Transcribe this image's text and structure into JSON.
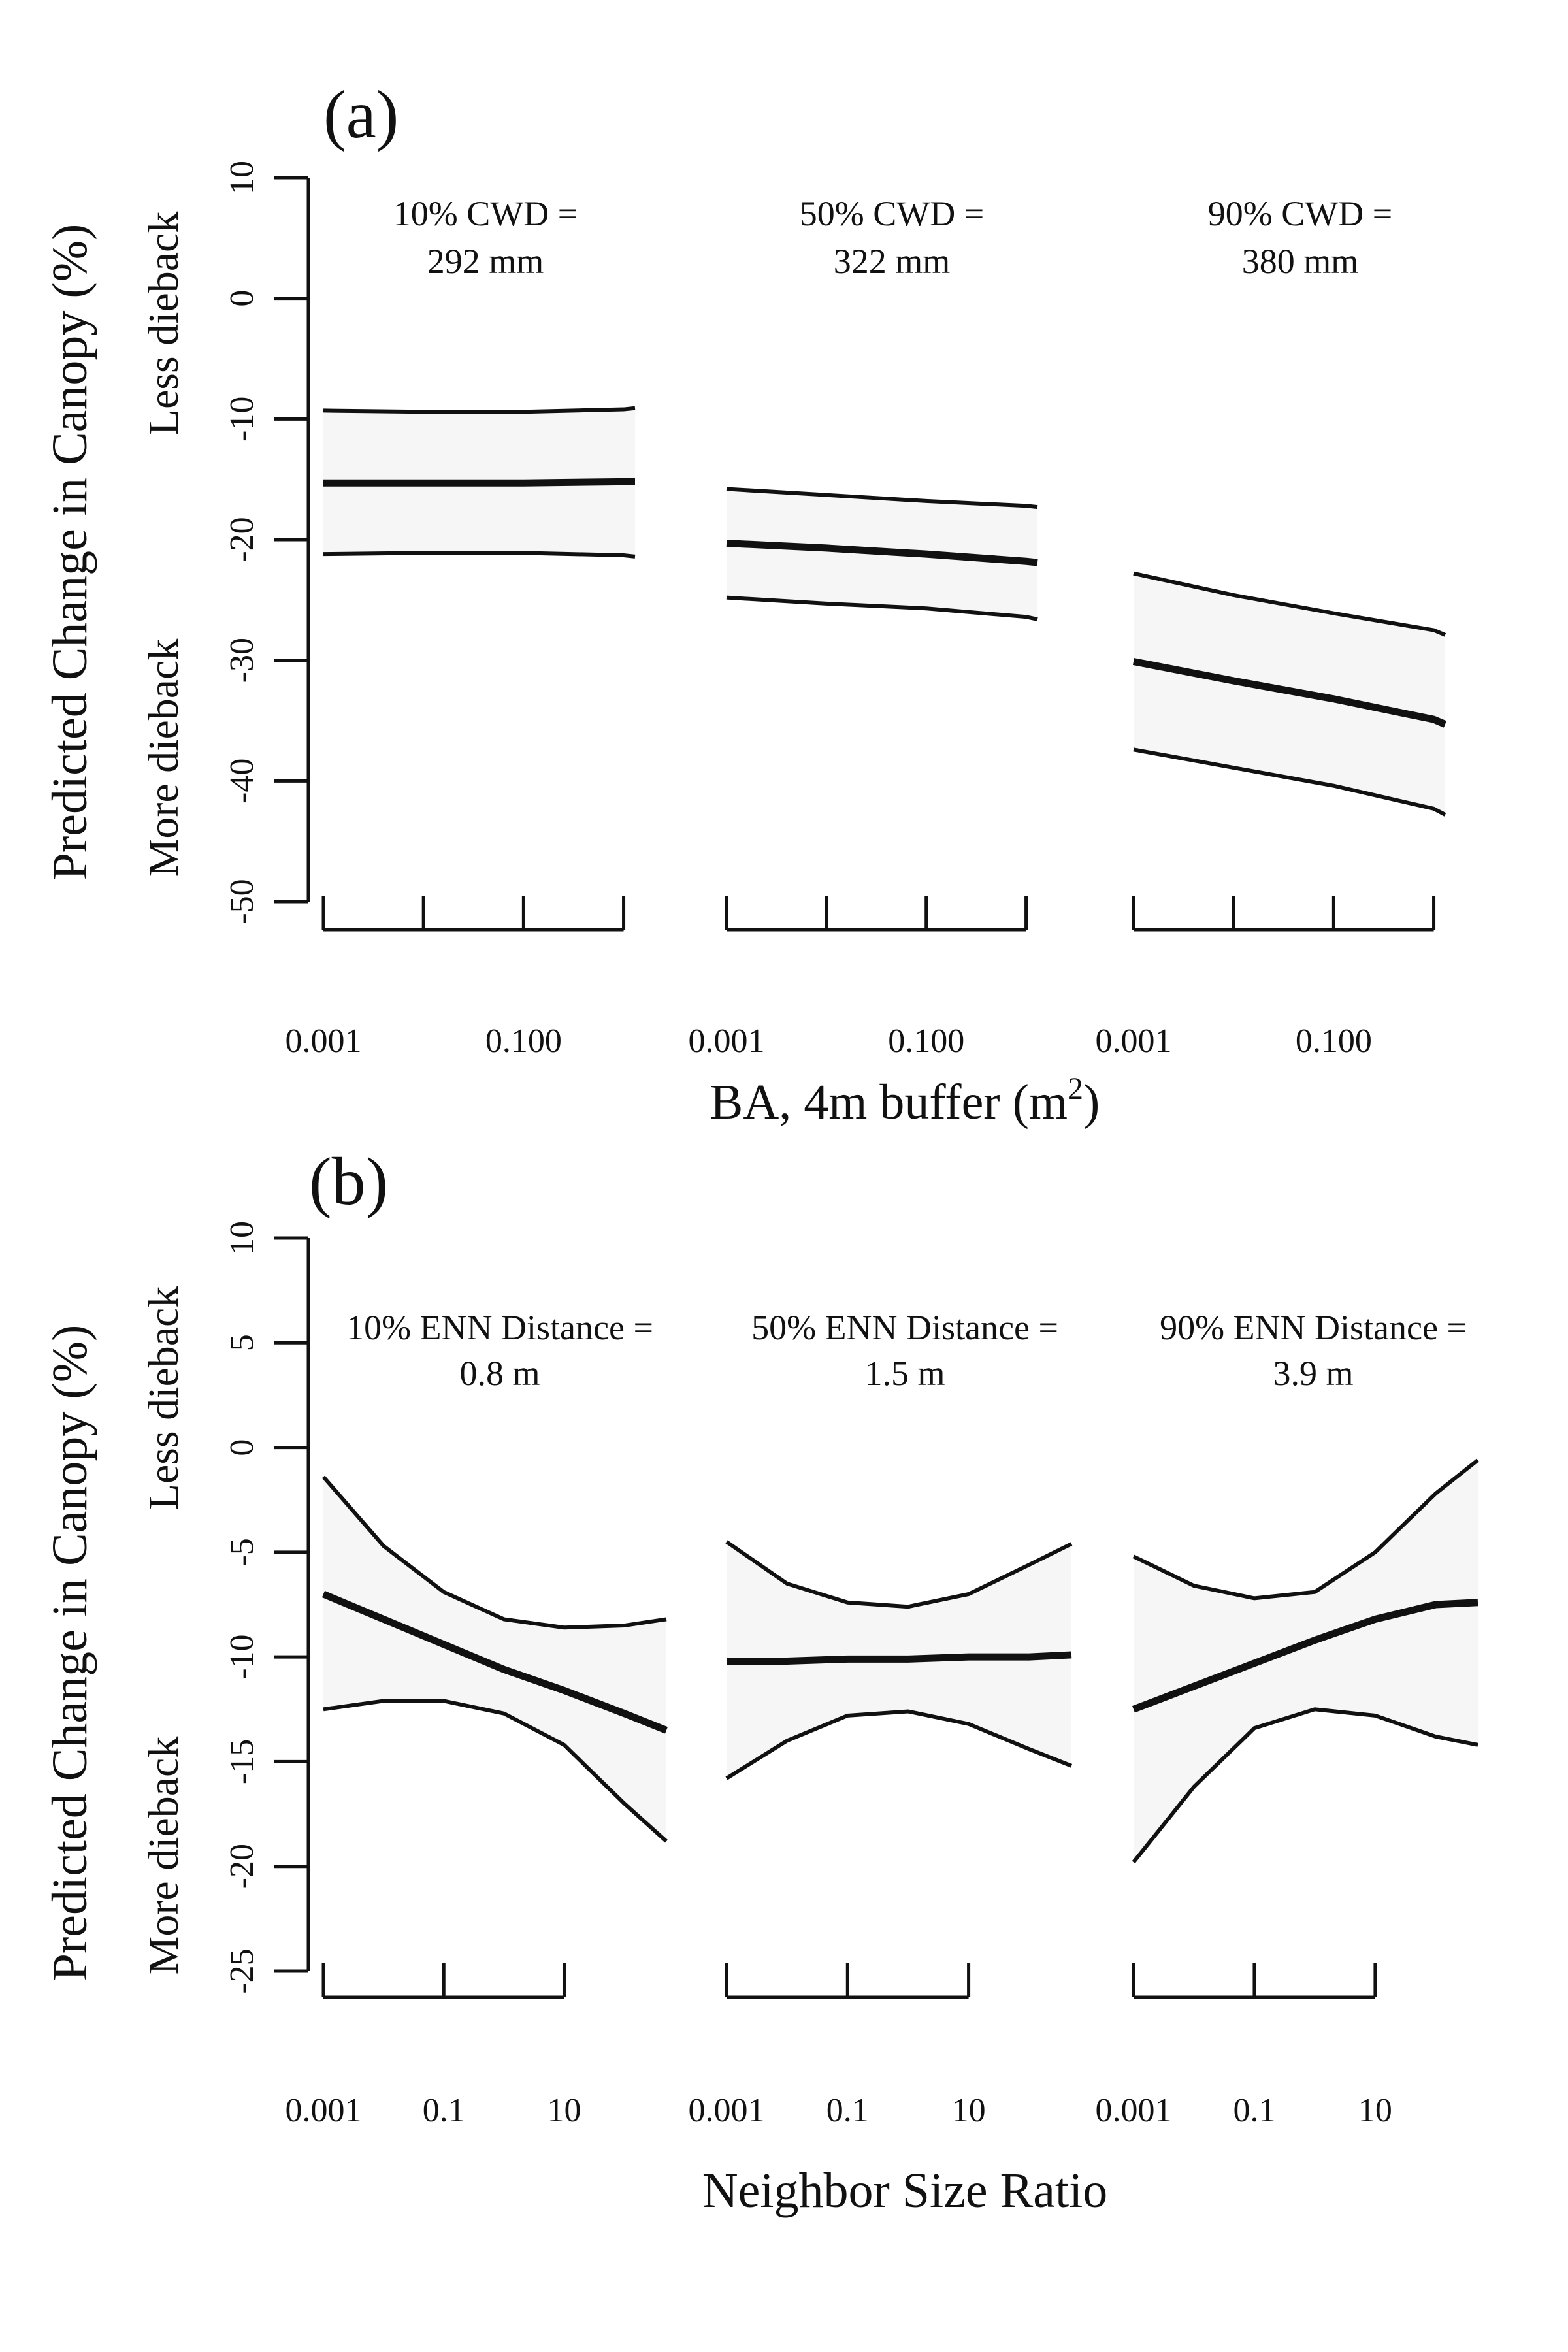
{
  "colors": {
    "ink": "#111111",
    "band": "#f6f6f6",
    "background": "#ffffff"
  },
  "chart_data": [
    {
      "panel": "(a)",
      "type": "line",
      "ylabel": "Predicted Change in Canopy (%)",
      "y_side_labels": {
        "upper": "Less dieback",
        "lower": "More dieback"
      },
      "ylim": [
        -50,
        10
      ],
      "yticks": [
        10,
        0,
        -10,
        -20,
        -30,
        -40,
        -50
      ],
      "xlabel": "BA, 4m buffer (m",
      "xlabel_superscript": "2",
      "xlabel_suffix": ")",
      "x_scale": "log",
      "xlim": [
        0.001,
        1.3
      ],
      "xticks": [
        0.001,
        0.01,
        0.1,
        1
      ],
      "xtick_labels": [
        "0.001",
        "",
        "0.100",
        ""
      ],
      "subplots": [
        {
          "title_line1": "10% CWD =",
          "title_line2": "292 mm",
          "x": [
            0.001,
            0.01,
            0.1,
            1,
            1.3
          ],
          "fit": [
            -15.3,
            -15.3,
            -15.3,
            -15.2,
            -15.2
          ],
          "upper": [
            -9.3,
            -9.4,
            -9.4,
            -9.2,
            -9.1
          ],
          "lower": [
            -21.2,
            -21.1,
            -21.1,
            -21.3,
            -21.4
          ]
        },
        {
          "title_line1": "50% CWD =",
          "title_line2": "322 mm",
          "x": [
            0.001,
            0.01,
            0.1,
            1,
            1.3
          ],
          "fit": [
            -20.3,
            -20.7,
            -21.2,
            -21.8,
            -21.9
          ],
          "upper": [
            -15.8,
            -16.3,
            -16.8,
            -17.2,
            -17.3
          ],
          "lower": [
            -24.8,
            -25.3,
            -25.7,
            -26.4,
            -26.6
          ]
        },
        {
          "title_line1": "90% CWD =",
          "title_line2": "380 mm",
          "x": [
            0.001,
            0.01,
            0.1,
            1,
            1.3
          ],
          "fit": [
            -30.1,
            -31.7,
            -33.2,
            -34.9,
            -35.3
          ],
          "upper": [
            -22.8,
            -24.6,
            -26.1,
            -27.5,
            -27.9
          ],
          "lower": [
            -37.4,
            -38.9,
            -40.4,
            -42.3,
            -42.8
          ]
        }
      ]
    },
    {
      "panel": "(b)",
      "type": "line",
      "ylabel": "Predicted Change in Canopy (%)",
      "y_side_labels": {
        "upper": "Less dieback",
        "lower": "More dieback"
      },
      "ylim": [
        -25,
        10
      ],
      "yticks": [
        10,
        5,
        0,
        -5,
        -10,
        -15,
        -20,
        -25
      ],
      "xlabel": "Neighbor Size Ratio",
      "x_scale": "log",
      "xlim": [
        0.001,
        500
      ],
      "xticks": [
        0.001,
        0.1,
        10
      ],
      "xtick_labels": [
        "0.001",
        "0.1",
        "10"
      ],
      "subplots": [
        {
          "title_line1": "10% ENN Distance =",
          "title_line2": "0.8 m",
          "x": [
            0.001,
            0.01,
            0.1,
            1,
            10,
            100,
            500
          ],
          "fit": [
            -7.0,
            -8.2,
            -9.4,
            -10.6,
            -11.6,
            -12.7,
            -13.5
          ],
          "upper": [
            -1.4,
            -4.7,
            -6.9,
            -8.2,
            -8.6,
            -8.5,
            -8.2
          ],
          "lower": [
            -12.5,
            -12.1,
            -12.1,
            -12.7,
            -14.2,
            -17.0,
            -18.8
          ]
        },
        {
          "title_line1": "50% ENN Distance =",
          "title_line2": "1.5 m",
          "x": [
            0.001,
            0.01,
            0.1,
            1,
            10,
            100,
            500
          ],
          "fit": [
            -10.2,
            -10.2,
            -10.1,
            -10.1,
            -10.0,
            -10.0,
            -9.9
          ],
          "upper": [
            -4.5,
            -6.5,
            -7.4,
            -7.6,
            -7.0,
            -5.6,
            -4.6
          ],
          "lower": [
            -15.8,
            -14.0,
            -12.8,
            -12.6,
            -13.2,
            -14.4,
            -15.2
          ]
        },
        {
          "title_line1": "90% ENN Distance =",
          "title_line2": "3.9 m",
          "x": [
            0.001,
            0.01,
            0.1,
            1,
            10,
            100,
            500
          ],
          "fit": [
            -12.5,
            -11.4,
            -10.3,
            -9.2,
            -8.2,
            -7.5,
            -7.4
          ],
          "upper": [
            -5.2,
            -6.6,
            -7.2,
            -6.9,
            -5.0,
            -2.2,
            -0.6
          ],
          "lower": [
            -19.8,
            -16.2,
            -13.4,
            -12.5,
            -12.8,
            -13.8,
            -14.2
          ]
        }
      ]
    }
  ]
}
